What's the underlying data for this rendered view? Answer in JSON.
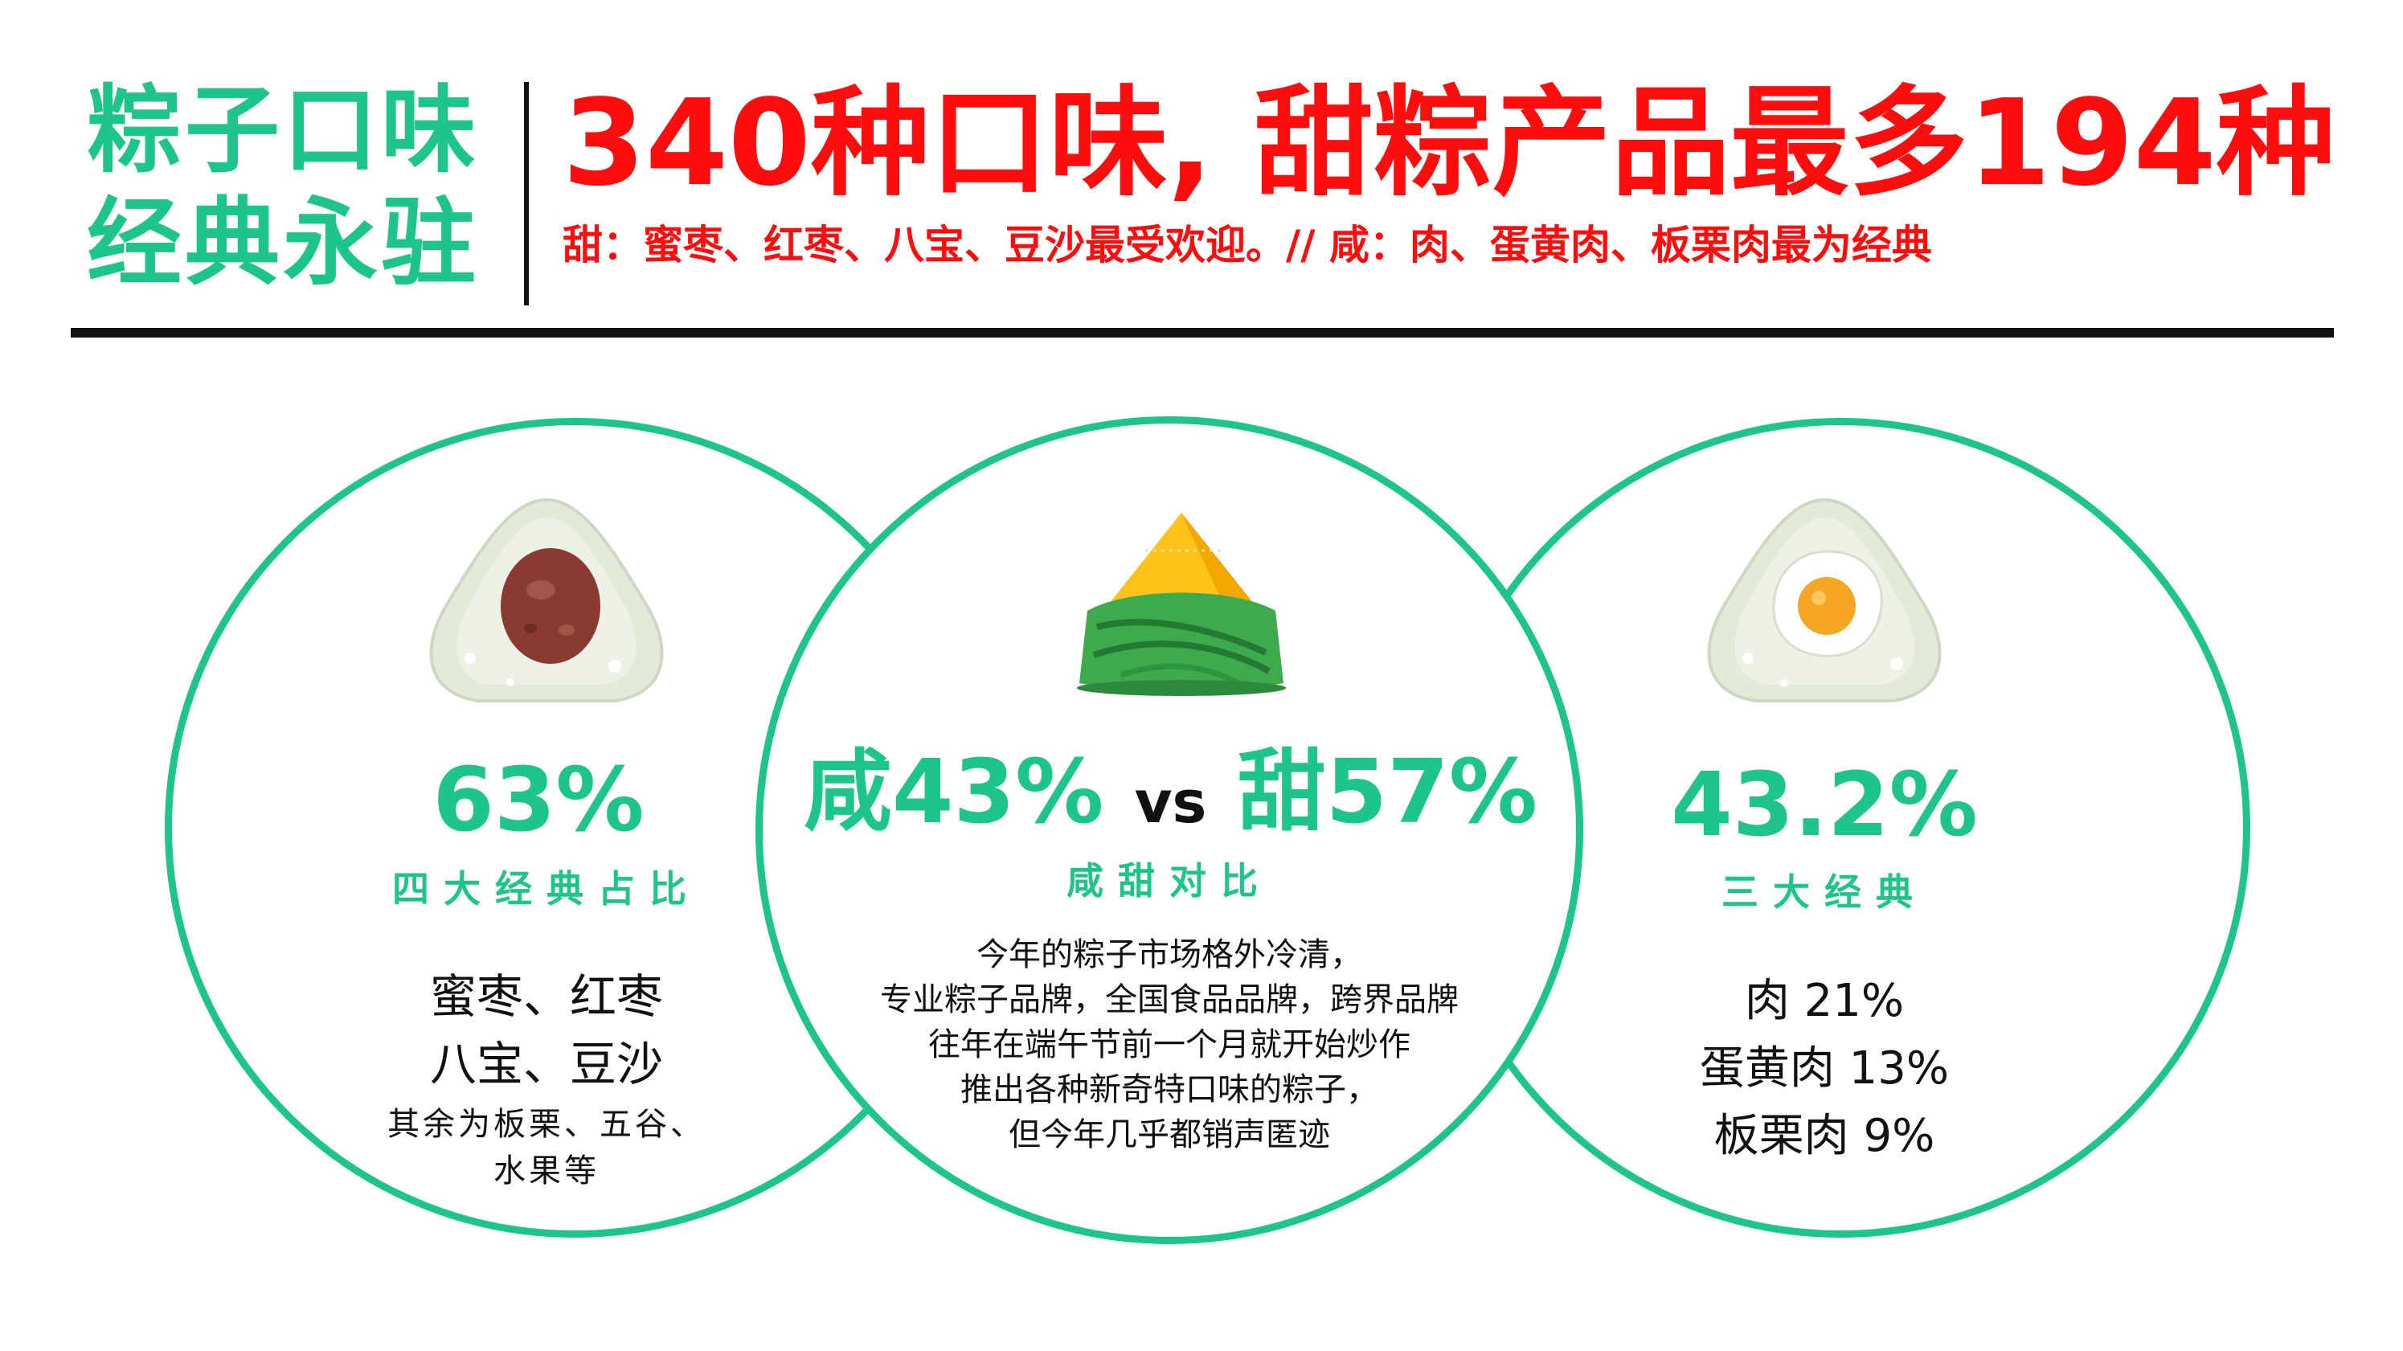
{
  "header": {
    "side_title_line1": "粽子口味",
    "side_title_line2": "经典永驻",
    "headline": "340种口味, 甜粽产品最多194种",
    "subline": "甜：蜜枣、红枣、八宝、豆沙最受欢迎。// 咸：肉、蛋黄肉、板栗肉最为经典"
  },
  "left": {
    "icon": "red-bean-rice-dumpling-icon",
    "stat": "63%",
    "caption": "四大经典占比",
    "line1": "蜜枣、红枣",
    "line2": "八宝、豆沙",
    "line3": "其余为板栗、五谷、",
    "line4": "水果等"
  },
  "middle": {
    "icon": "wrapped-zongzi-icon",
    "stat_salty": "咸43%",
    "vs": "vs",
    "stat_sweet": "甜57%",
    "caption": "咸甜对比",
    "lines": [
      "今年的粽子市场格外冷清，",
      "专业粽子品牌，全国食品品牌，跨界品牌",
      "往年在端午节前一个月就开始炒作",
      "推出各种新奇特口味的粽子，",
      "但今年几乎都销声匿迹"
    ]
  },
  "right": {
    "icon": "egg-yolk-rice-dumpling-icon",
    "stat": "43.2%",
    "caption": "三大经典",
    "line1": "肉 21%",
    "line2": "蛋黄肉 13%",
    "line3": "板栗肉 9%"
  },
  "colors": {
    "green": "#1ec58b",
    "red": "#ff0d0d",
    "black": "#111111"
  }
}
